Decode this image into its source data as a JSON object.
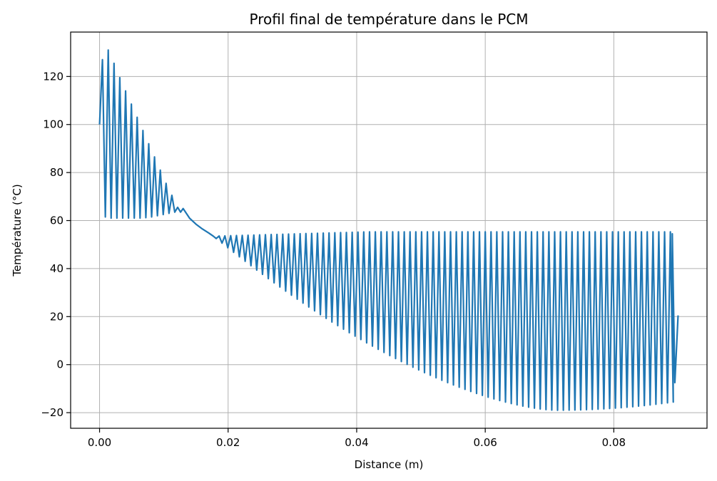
{
  "chart_data": {
    "type": "line",
    "title": "Profil final de température dans le PCM",
    "xlabel": "Distance (m)",
    "ylabel": "Température (°C)",
    "xlim": [
      -0.0045,
      0.0945
    ],
    "ylim": [
      -26.5,
      138.5
    ],
    "xticks": [
      0.0,
      0.02,
      0.04,
      0.06,
      0.08
    ],
    "xtick_labels": [
      "0.00",
      "0.02",
      "0.04",
      "0.06",
      "0.08"
    ],
    "yticks": [
      -20,
      0,
      20,
      40,
      60,
      80,
      100,
      120
    ],
    "ytick_labels": [
      "−20",
      "0",
      "20",
      "40",
      "60",
      "80",
      "100",
      "120"
    ],
    "grid": true,
    "color": "#1f77b4",
    "series": [
      {
        "x": [
          0.0,
          0.00045,
          0.0009,
          0.00135,
          0.0018,
          0.00225,
          0.0027,
          0.00315,
          0.0036,
          0.00405,
          0.0045,
          0.00495,
          0.0054,
          0.00585,
          0.0063,
          0.00675,
          0.0072,
          0.00765,
          0.0081,
          0.00855,
          0.009,
          0.00945,
          0.0099,
          0.01035,
          0.0108,
          0.01125,
          0.0117,
          0.01215,
          0.0126,
          0.013,
          0.014,
          0.015,
          0.016,
          0.017,
          0.0177
        ],
        "y": [
          100,
          127,
          61.5,
          131,
          61,
          125.5,
          61,
          119.5,
          61,
          114,
          61,
          108.5,
          61,
          103,
          61,
          97.5,
          61.2,
          92,
          61.5,
          86.5,
          62,
          81,
          62.5,
          75.5,
          63,
          70.5,
          63.5,
          65.5,
          63.5,
          65,
          61,
          58.5,
          56.5,
          54.8,
          53.5
        ]
      }
    ],
    "oscillation_region": {
      "x_start": 0.0177,
      "x_end": 0.0895,
      "period": 0.0009,
      "upper_start": 53.5,
      "upper_max": 55.3,
      "lower_min": -19,
      "lower_min_at": 0.071,
      "last_peak": 54.5,
      "last_trough": -7.5,
      "end_value": 20.5
    }
  }
}
